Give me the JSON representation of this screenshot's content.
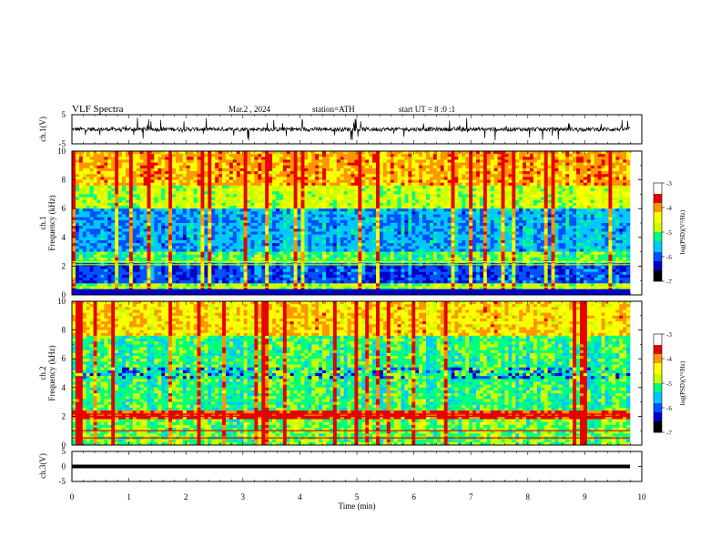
{
  "header": {
    "title": "VLF Spectra",
    "date": "Mar.2 , 2024",
    "station": "station=ATH",
    "start": "start UT = 8 :0 :1"
  },
  "chart_data": [
    {
      "type": "line",
      "name": "ch1-voltage",
      "ylabel": "ch.1(V)",
      "ylim": [
        -5,
        5
      ],
      "yticks": [
        "5",
        "-5"
      ],
      "xlim": [
        0,
        10
      ],
      "description_level": 0
    },
    {
      "type": "heatmap",
      "name": "ch1-spectrogram",
      "ylabel_top": "ch.1",
      "ylabel": "Frequency (kHz)",
      "ylim": [
        0,
        10
      ],
      "yticks": [
        "0",
        "2",
        "4",
        "6",
        "8",
        "10"
      ],
      "xlim": [
        0,
        10
      ],
      "colorbar": {
        "label": "log(PSD)(V²/Hz)",
        "ticks": [
          "-3",
          "-4",
          "-5",
          "-6",
          "-7"
        ],
        "range": [
          -7,
          -3
        ]
      }
    },
    {
      "type": "heatmap",
      "name": "ch2-spectrogram",
      "ylabel_top": "ch.2",
      "ylabel": "Frequency (kHz)",
      "ylim": [
        0,
        10
      ],
      "yticks": [
        "0",
        "2",
        "4",
        "6",
        "8",
        "10"
      ],
      "xlim": [
        0,
        10
      ],
      "colorbar": {
        "label": "log(PSD)(V²/Hz)",
        "ticks": [
          "-3",
          "-4",
          "-5",
          "-6",
          "-7"
        ],
        "range": [
          -7,
          -3
        ]
      }
    },
    {
      "type": "line",
      "name": "ch3-voltage",
      "ylabel": "ch.3(V)",
      "ylim": [
        -5,
        5
      ],
      "yticks": [
        "5",
        "0",
        "-5"
      ],
      "xlim": [
        0,
        10
      ],
      "level": 0
    }
  ],
  "xaxis": {
    "label": "Time (min)",
    "ticks": [
      "0",
      "1",
      "2",
      "3",
      "4",
      "5",
      "6",
      "7",
      "8",
      "9",
      "10"
    ]
  },
  "colors": {
    "colormap": [
      "#000000",
      "#0000c8",
      "#0050ff",
      "#00c8ff",
      "#00ff80",
      "#c8ff00",
      "#ffff00",
      "#ff9600",
      "#e60000",
      "#ffffff"
    ]
  }
}
